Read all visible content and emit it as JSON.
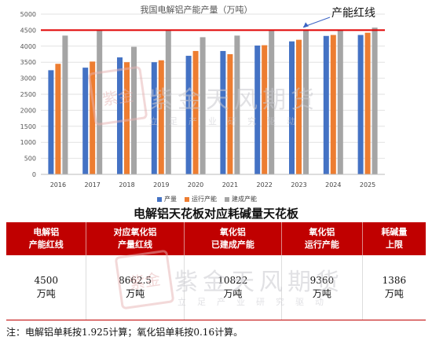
{
  "chart_data": {
    "type": "bar",
    "title": "我国电解铝产能产量（万吨）",
    "categories": [
      "2016",
      "2017",
      "2018",
      "2019",
      "2020",
      "2021",
      "2022",
      "2023",
      "2024",
      "2025"
    ],
    "series": [
      {
        "name": "产量",
        "color": "#4472c4",
        "values": [
          3250,
          3330,
          3650,
          3500,
          3700,
          3850,
          4020,
          4150,
          4320,
          4350
        ]
      },
      {
        "name": "运行产能",
        "color": "#ed7d31",
        "values": [
          3450,
          3520,
          3500,
          3560,
          3850,
          3750,
          4030,
          4200,
          4350,
          4420
        ]
      },
      {
        "name": "建成产能",
        "color": "#a5a5a5",
        "values": [
          4330,
          4480,
          3980,
          4480,
          4280,
          4330,
          4480,
          4500,
          4490,
          4580
        ]
      }
    ],
    "ylim": [
      0,
      5000
    ],
    "yticks": [
      0,
      500,
      1000,
      1500,
      2000,
      2500,
      3000,
      3500,
      4000,
      4500,
      5000
    ],
    "reference_line": {
      "value": 4500,
      "label": "产能红线",
      "color": "#e00000"
    },
    "grid": true,
    "legend_position": "bottom"
  },
  "watermark": {
    "seal_text": "紫金",
    "main_text": "紫金天风期货",
    "sub_text": "立足产业研究驱动"
  },
  "table": {
    "title": "电解铝天花板对应耗碱量天花板",
    "headers": [
      [
        "电解铝",
        "产能红线"
      ],
      [
        "对应氧化铝",
        "产量红线"
      ],
      [
        "氧化铝",
        "已建成产能"
      ],
      [
        "氧化铝",
        "运行产能"
      ],
      [
        "耗碱量",
        "上限"
      ]
    ],
    "values": [
      [
        "4500",
        "万吨"
      ],
      [
        "8662.5",
        "万吨"
      ],
      [
        "10822",
        "万吨"
      ],
      [
        "9360",
        "万吨"
      ],
      [
        "1386",
        "万吨"
      ]
    ]
  },
  "note": "注：电解铝单耗按1.925计算；氧化铝单耗按0.16计算。"
}
